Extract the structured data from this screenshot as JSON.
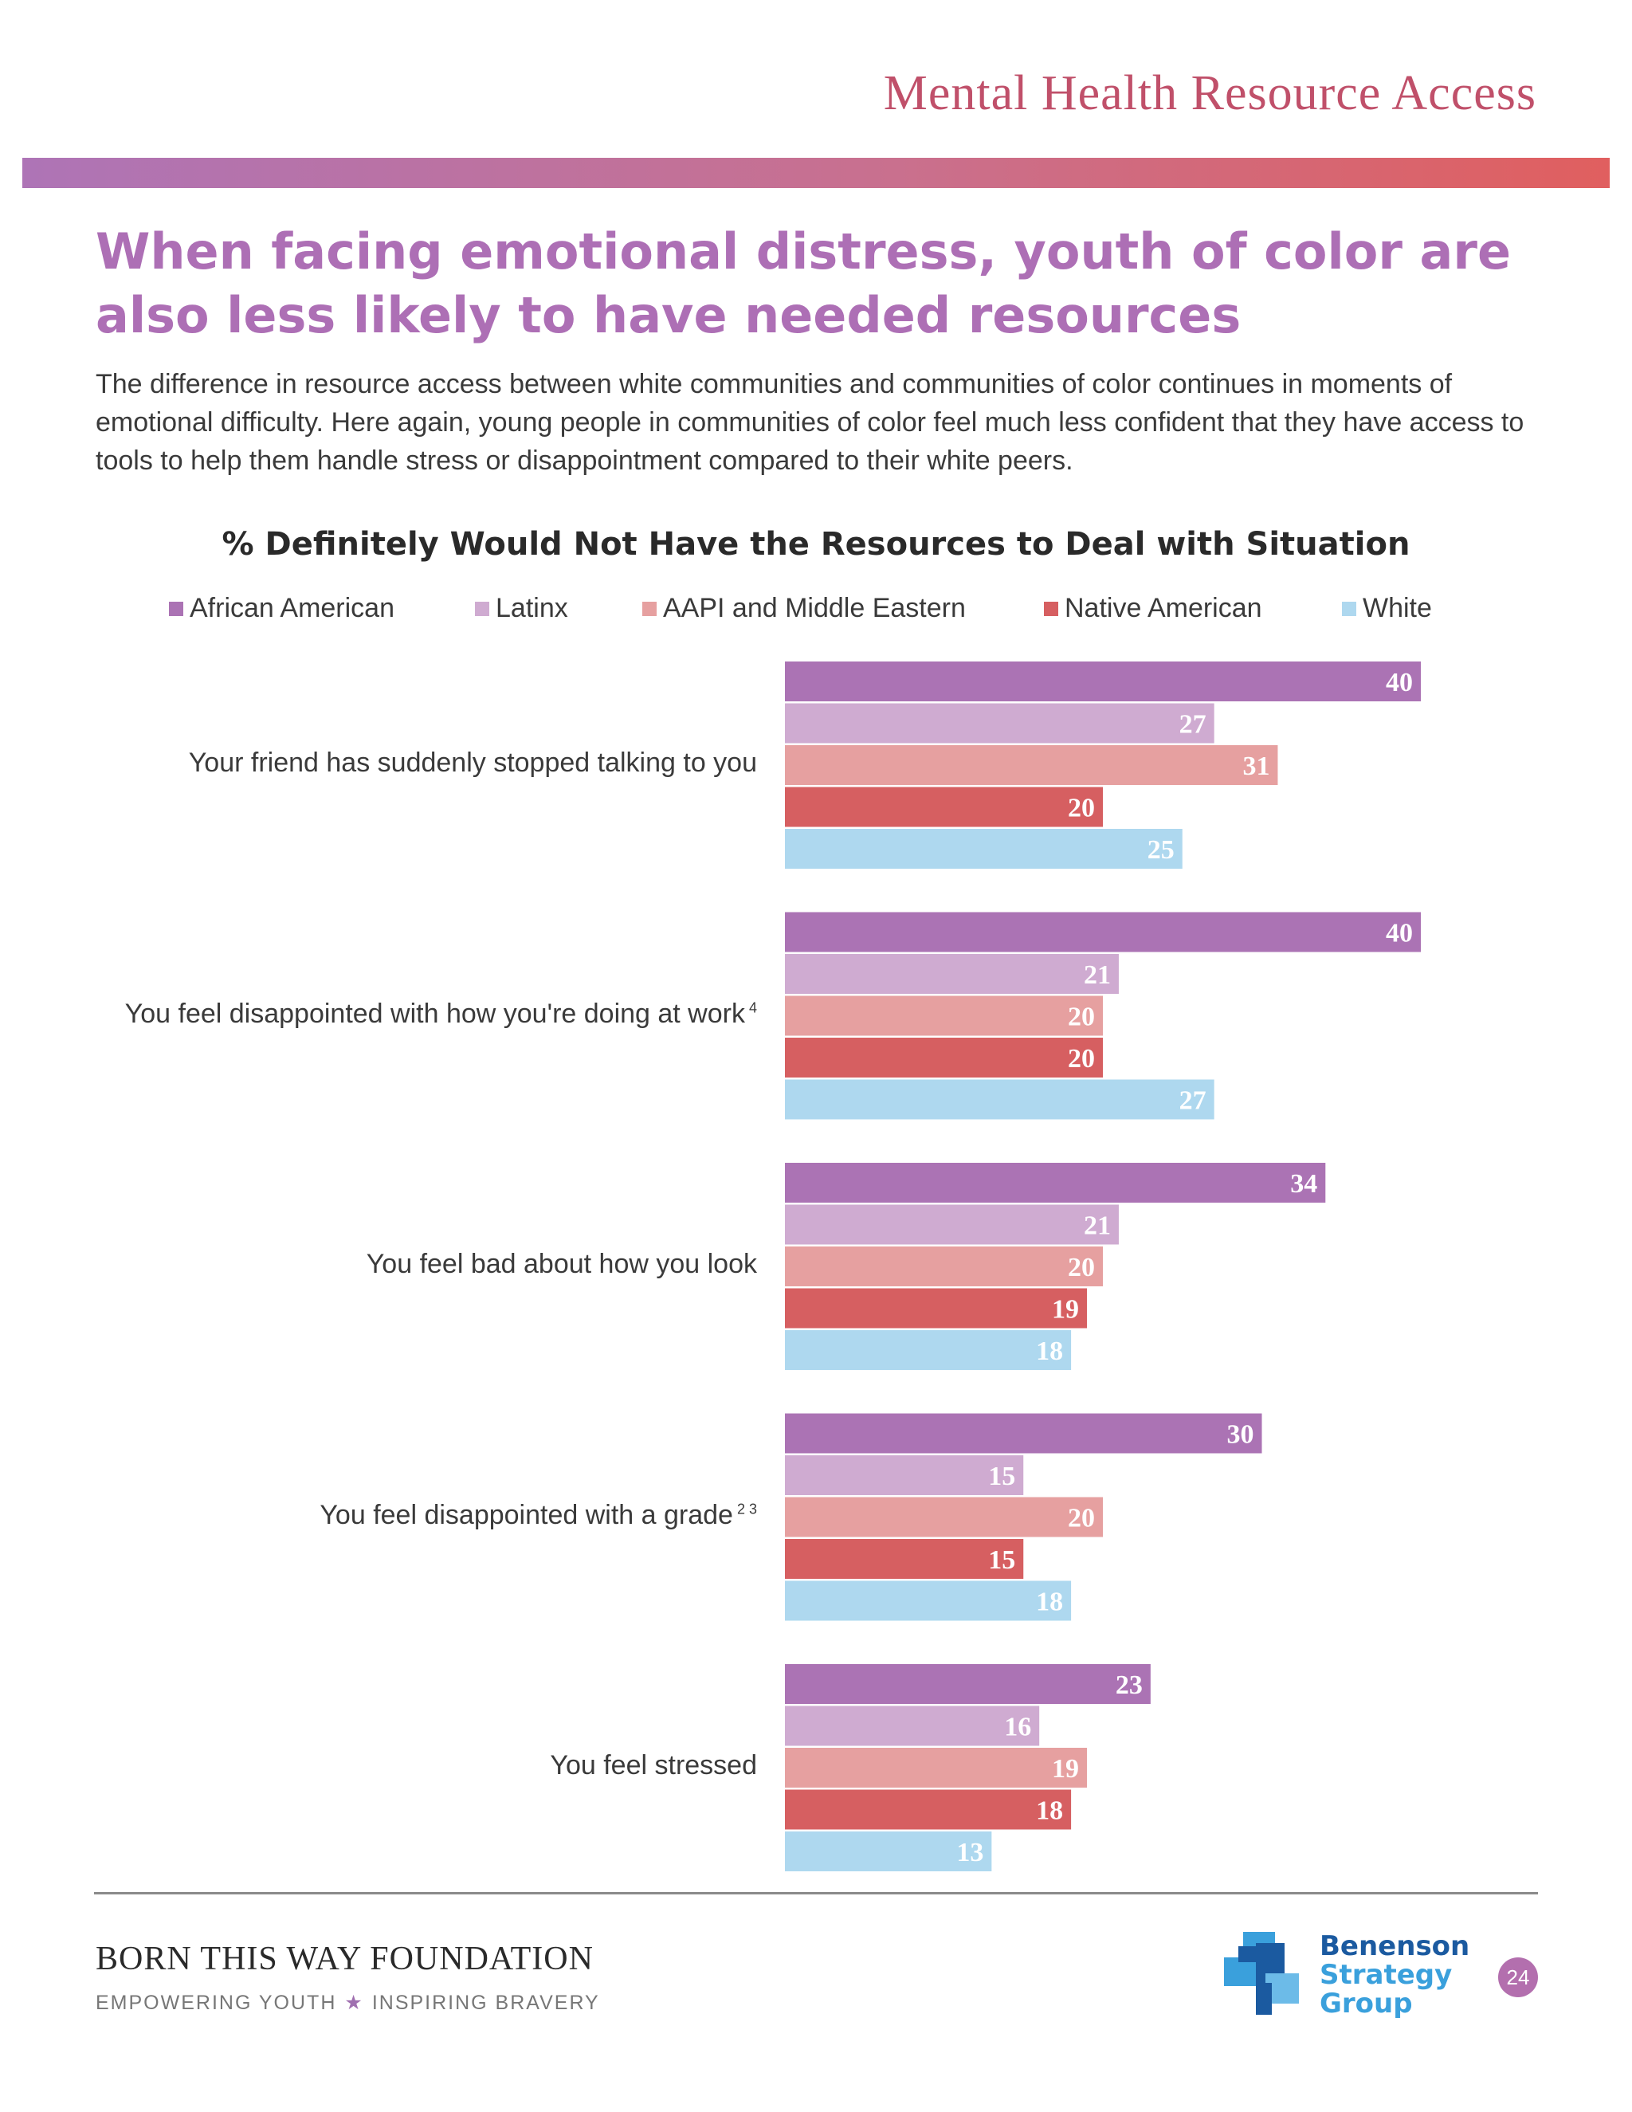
{
  "header": {
    "section_title": "Mental Health Resource Access"
  },
  "headline": {
    "line1": "When facing emotional distress, youth of color are",
    "line2": "also less likely to have needed resources"
  },
  "intro": "The difference in resource access between white communities and communities of color continues in moments of emotional difficulty. Here again, young people in communities of color feel much less confident that they have access to tools to help them handle stress or disappointment compared to their white peers.",
  "chart_data": {
    "type": "bar",
    "orientation": "horizontal",
    "title": "% Definitely Would Not Have the Resources to Deal with Situation",
    "legend_position": "top",
    "xlim": [
      0,
      40
    ],
    "categories": [
      {
        "label": "Your friend has suddenly stopped talking to you",
        "note": ""
      },
      {
        "label": "You feel disappointed with how you're doing at work",
        "note": "4"
      },
      {
        "label": "You feel bad about how you look",
        "note": ""
      },
      {
        "label": "You feel disappointed with a grade",
        "note": "2 3"
      },
      {
        "label": "You feel stressed",
        "note": ""
      }
    ],
    "series": [
      {
        "name": "African American",
        "color": "#ab73b4",
        "values": [
          40,
          40,
          34,
          30,
          23
        ]
      },
      {
        "name": "Latinx",
        "color": "#cfabd1",
        "values": [
          27,
          21,
          21,
          15,
          16
        ]
      },
      {
        "name": "AAPI and Middle Eastern",
        "color": "#e6a0a0",
        "values": [
          31,
          20,
          20,
          20,
          19
        ]
      },
      {
        "name": "Native American",
        "color": "#d65f61",
        "values": [
          20,
          20,
          19,
          15,
          18
        ]
      },
      {
        "name": "White",
        "color": "#aed8ef",
        "values": [
          25,
          27,
          18,
          18,
          13
        ]
      }
    ]
  },
  "footer": {
    "org_name": "BORN THIS WAY FOUNDATION",
    "tagline_left": "EMPOWERING YOUTH",
    "tagline_star": "★",
    "tagline_right": "INSPIRING BRAVERY",
    "partner_line1": "Benenson",
    "partner_line2": "Strategy",
    "partner_line3": "Group",
    "page_number": "24"
  }
}
